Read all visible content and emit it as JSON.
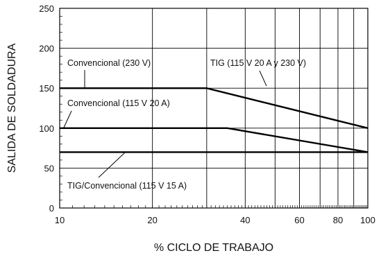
{
  "chart_data": {
    "type": "line",
    "xlabel": "% CICLO DE TRABAJO",
    "ylabel": "SALIDA DE SOLDADURA",
    "x_scale": "log",
    "xlim": [
      10,
      100
    ],
    "ylim": [
      0,
      250
    ],
    "x_ticks": [
      10,
      20,
      40,
      60,
      80,
      100
    ],
    "y_ticks": [
      0,
      50,
      100,
      150,
      200,
      250
    ],
    "grid": true,
    "series": [
      {
        "name": "Convencional (230 V)",
        "points": [
          [
            10,
            150
          ],
          [
            30,
            150
          ],
          [
            100,
            100
          ]
        ]
      },
      {
        "name": "Convencional (115 V 20 A)",
        "points": [
          [
            10,
            100
          ],
          [
            35,
            100
          ],
          [
            100,
            70
          ]
        ]
      },
      {
        "name": "TIG/Convencional (115 V 15 A)",
        "points": [
          [
            10,
            70
          ],
          [
            100,
            70
          ]
        ]
      }
    ],
    "annotations": [
      {
        "text": "Convencional (230 V)"
      },
      {
        "text": "Convencional (115 V 20 A)"
      },
      {
        "text": "TIG (115 V 20 A y 230 V)"
      },
      {
        "text": "TIG/Convencional (115 V 15 A)"
      }
    ]
  }
}
